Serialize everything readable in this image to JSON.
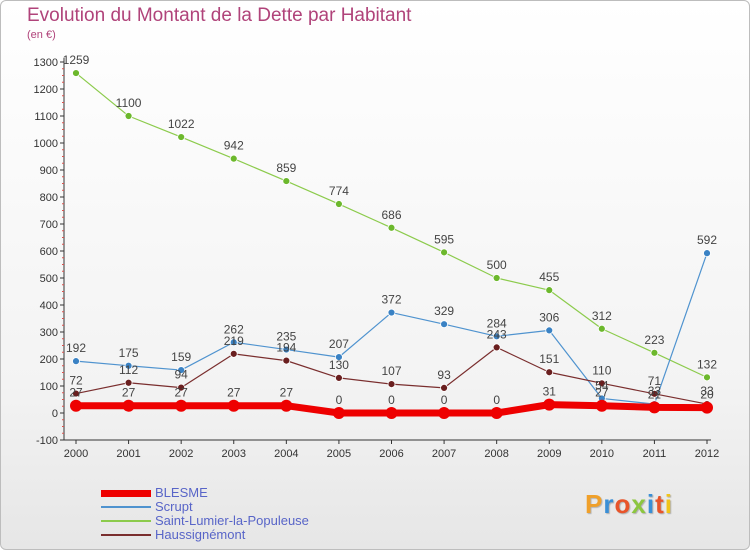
{
  "title": "Evolution du Montant de la Dette par Habitant",
  "subtitle": "(en €)",
  "logo_text": "Proxiti",
  "colors": {
    "title": "#b0437a",
    "legend_text": "#5865c8",
    "axis": "#333333",
    "tick_red": "#d9534f"
  },
  "chart_data": {
    "type": "line",
    "title": "Evolution du Montant de la Dette par Habitant",
    "subtitle": "(en €)",
    "xlabel": "",
    "ylabel": "",
    "categories": [
      "2000",
      "2001",
      "2002",
      "2003",
      "2004",
      "2005",
      "2006",
      "2007",
      "2008",
      "2009",
      "2010",
      "2011",
      "2012"
    ],
    "ylim": [
      -100,
      1300
    ],
    "yticks": [
      -100,
      0,
      100,
      200,
      300,
      400,
      500,
      600,
      700,
      800,
      900,
      1000,
      1100,
      1200,
      1300
    ],
    "grid": false,
    "legend_position": "bottom-left",
    "series": [
      {
        "name": "Saint-Lumier-la-Populeuse",
        "color": "#8ccb4c",
        "marker_color": "#6cb82c",
        "width": 1.2,
        "marker_r": 3.5,
        "values": [
          1259,
          1100,
          1022,
          942,
          859,
          774,
          686,
          595,
          500,
          455,
          312,
          223,
          132
        ],
        "labels": [
          "1259",
          "1100",
          "1022",
          "942",
          "859",
          "774",
          "686",
          "595",
          "500",
          "455",
          "312",
          "223",
          "132"
        ]
      },
      {
        "name": "Scrupt",
        "color": "#4f93cf",
        "marker_color": "#3a82c4",
        "width": 1.2,
        "marker_r": 3.5,
        "values": [
          192,
          175,
          159,
          262,
          235,
          207,
          372,
          329,
          284,
          306,
          54,
          33,
          592
        ],
        "labels": [
          "192",
          "175",
          "159",
          "262",
          "235",
          "207",
          "372",
          "329",
          "284",
          "306",
          "54",
          "33",
          "592"
        ]
      },
      {
        "name": "Haussignémont",
        "color": "#7a2e2e",
        "marker_color": "#6a1f1f",
        "width": 1.2,
        "marker_r": 3.5,
        "values": [
          72,
          112,
          94,
          219,
          194,
          130,
          107,
          93,
          243,
          151,
          110,
          71,
          33
        ],
        "labels": [
          "72",
          "112",
          "94",
          "219",
          "194",
          "130",
          "107",
          "93",
          "243",
          "151",
          "110",
          "71",
          "33"
        ]
      },
      {
        "name": "BLESME",
        "color": "#ee0000",
        "marker_color": "#ee0000",
        "width": 7,
        "marker_r": 6,
        "values": [
          27,
          27,
          27,
          27,
          27,
          0,
          0,
          0,
          0,
          31,
          27,
          21,
          20
        ],
        "labels": [
          "27",
          "27",
          "27",
          "27",
          "27",
          "0",
          "0",
          "0",
          "0",
          "31",
          "27",
          "21",
          "20"
        ]
      }
    ]
  },
  "legend": [
    {
      "label": "BLESME",
      "color": "#ee0000",
      "thickness": 7
    },
    {
      "label": "Scrupt",
      "color": "#4f93cf",
      "thickness": 2
    },
    {
      "label": "Saint-Lumier-la-Populeuse",
      "color": "#8ccb4c",
      "thickness": 2
    },
    {
      "label": "Haussignémont",
      "color": "#7a2e2e",
      "thickness": 2
    }
  ]
}
